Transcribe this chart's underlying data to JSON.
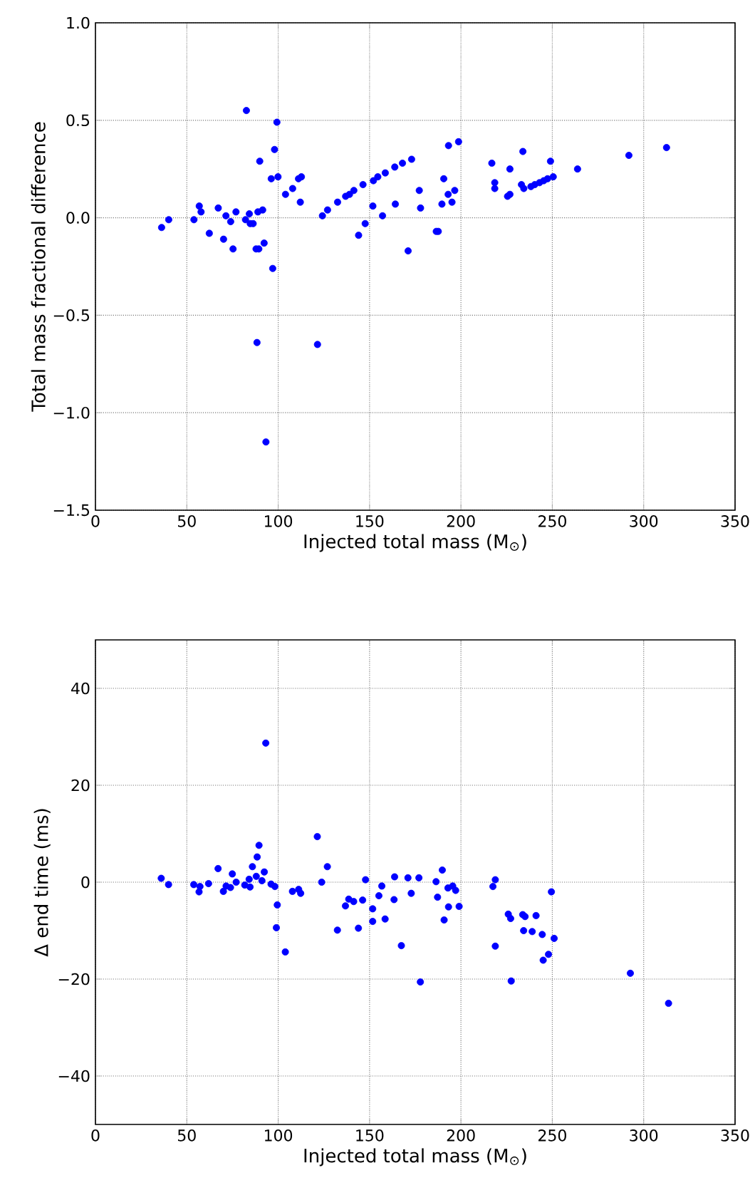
{
  "chart_data": [
    {
      "type": "scatter",
      "xlabel": "Injected total mass (M$_{⊙}$)",
      "ylabel": "Total mass fractional difference",
      "xlim": [
        0,
        350
      ],
      "ylim": [
        -1.5,
        1.0
      ],
      "xticks": [
        0,
        50,
        100,
        150,
        200,
        250,
        300,
        350
      ],
      "yticks": [
        {
          "value": -1.5,
          "label": "−1.5"
        },
        {
          "value": -1.0,
          "label": "−1.0"
        },
        {
          "value": -0.5,
          "label": "−0.5"
        },
        {
          "value": 0.0,
          "label": "0.0"
        },
        0.5,
        {
          "value": 1.0,
          "label": "1.0"
        }
      ],
      "grid": true,
      "marker": "circle",
      "series": [
        {
          "color": "#0000ff",
          "x": [
            36.2,
            40.1,
            53.9,
            56.8,
            57.8,
            62.3,
            67.2,
            70.1,
            71.4,
            74.0,
            75.3,
            76.9,
            82.6,
            82.1,
            84.2,
            84.7,
            86.3,
            88.4,
            88.9,
            87.9,
            89.4,
            89.9,
            91.5,
            92.3,
            93.3,
            96.2,
            97.0,
            98.0,
            99.3,
            99.9,
            104.0,
            107.9,
            111.1,
            112.7,
            112.1,
            121.5,
            124.2,
            127.0,
            132.5,
            136.9,
            139.0,
            141.4,
            144.0,
            146.4,
            147.6,
            152.1,
            151.8,
            154.5,
            157.1,
            158.6,
            163.8,
            164.1,
            168.0,
            171.1,
            173.0,
            177.2,
            177.9,
            186.5,
            187.6,
            190.6,
            193.2,
            193.0,
            196.6,
            189.6,
            195.1,
            198.7,
            216.9,
            218.5,
            218.5,
            226.8,
            225.5,
            226.8,
            233.9,
            233.1,
            234.4,
            238.3,
            240.4,
            243.0,
            245.3,
            247.4,
            250.5,
            249.0,
            263.8,
            291.9,
            312.5
          ],
          "values": [
            -0.05,
            -0.01,
            -0.01,
            0.06,
            0.03,
            -0.08,
            0.05,
            -0.11,
            0.01,
            -0.02,
            -0.16,
            0.03,
            0.55,
            -0.01,
            0.02,
            -0.03,
            -0.03,
            -0.64,
            0.03,
            -0.16,
            -0.16,
            0.29,
            0.04,
            -0.13,
            -1.15,
            0.2,
            -0.26,
            0.35,
            0.49,
            0.21,
            0.12,
            0.15,
            0.2,
            0.21,
            0.08,
            -0.65,
            0.01,
            0.04,
            0.08,
            0.11,
            0.12,
            0.14,
            -0.09,
            0.17,
            -0.03,
            0.19,
            0.06,
            0.21,
            0.01,
            0.23,
            0.26,
            0.07,
            0.28,
            -0.17,
            0.3,
            0.14,
            0.05,
            -0.07,
            -0.07,
            0.2,
            0.37,
            0.12,
            0.14,
            0.07,
            0.08,
            0.39,
            0.28,
            0.18,
            0.15,
            0.25,
            0.11,
            0.12,
            0.34,
            0.17,
            0.15,
            0.16,
            0.17,
            0.18,
            0.19,
            0.2,
            0.21,
            0.29,
            0.25,
            0.32,
            0.36
          ]
        }
      ]
    },
    {
      "type": "scatter",
      "xlabel": "Injected total mass (M$_{⊙}$)",
      "ylabel": "Δ end time (ms)",
      "xlim": [
        0,
        350
      ],
      "ylim": [
        -50,
        50
      ],
      "xticks": [
        0,
        50,
        100,
        150,
        200,
        250,
        300,
        350
      ],
      "yticks": [
        {
          "value": -40,
          "label": "−40"
        },
        {
          "value": -20,
          "label": "−20"
        },
        0,
        20,
        40
      ],
      "grid": true,
      "marker": "circle",
      "series": [
        {
          "color": "#0000ff",
          "x": [
            36.0,
            40.0,
            53.8,
            57.2,
            56.7,
            61.9,
            67.1,
            70.0,
            71.5,
            73.9,
            74.9,
            77.0,
            81.7,
            84.1,
            84.6,
            85.9,
            88.0,
            88.5,
            89.5,
            91.1,
            92.4,
            93.2,
            96.1,
            98.2,
            99.5,
            99.0,
            103.9,
            107.8,
            111.2,
            112.3,
            121.4,
            123.8,
            126.9,
            132.4,
            136.8,
            138.6,
            141.3,
            143.9,
            146.2,
            147.8,
            151.7,
            151.7,
            155.1,
            156.7,
            158.5,
            163.4,
            163.7,
            167.4,
            171.0,
            172.8,
            177.0,
            177.8,
            186.4,
            187.2,
            189.8,
            190.8,
            192.9,
            195.5,
            197.1,
            193.2,
            199.0,
            217.5,
            218.8,
            218.8,
            225.9,
            227.2,
            227.5,
            233.8,
            235.1,
            241.1,
            234.3,
            239.0,
            244.5,
            245.0,
            247.9,
            249.5,
            251.0,
            292.7,
            313.6
          ],
          "values": [
            0.8,
            -0.5,
            -0.5,
            -0.9,
            -2.0,
            -0.3,
            2.8,
            -1.9,
            -0.8,
            -1.1,
            1.7,
            0.0,
            -0.6,
            0.6,
            -1.0,
            3.2,
            1.2,
            5.2,
            7.6,
            0.3,
            2.1,
            28.7,
            -0.4,
            -0.9,
            -4.7,
            -9.4,
            -14.4,
            -1.9,
            -1.5,
            -2.3,
            9.4,
            0.0,
            3.2,
            -9.9,
            -4.9,
            -3.5,
            -4.0,
            -9.5,
            -3.7,
            0.5,
            -5.5,
            -8.1,
            -2.8,
            -0.8,
            -7.6,
            -3.6,
            1.1,
            -13.1,
            0.9,
            -2.3,
            0.9,
            -20.6,
            0.1,
            -3.1,
            2.5,
            -7.8,
            -1.2,
            -0.8,
            -1.7,
            -5.1,
            -5.0,
            -0.9,
            0.5,
            -13.2,
            -6.6,
            -7.5,
            -20.4,
            -6.7,
            -7.1,
            -6.9,
            -10.0,
            -10.2,
            -10.8,
            -16.1,
            -14.9,
            -2.0,
            -11.6,
            -18.8,
            -25.0
          ]
        }
      ]
    }
  ]
}
